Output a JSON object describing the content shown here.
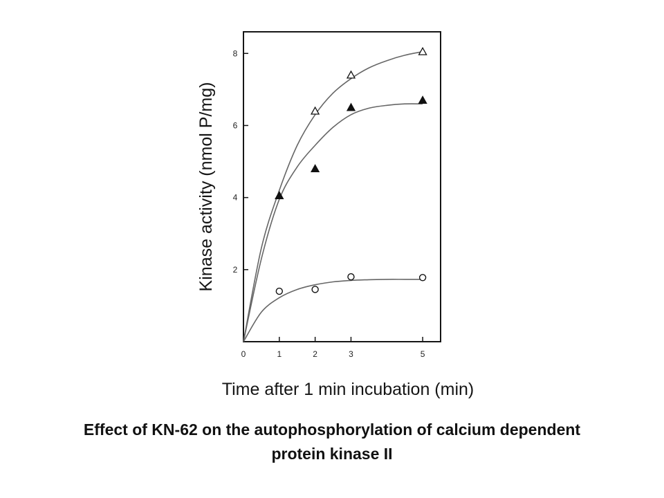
{
  "chart_data": {
    "type": "line",
    "xlabel": "Time after 1 min incubation (min)",
    "ylabel": "Kinase activity (nmol P/mg)",
    "xlim": [
      0,
      5.5
    ],
    "ylim": [
      0,
      8.6
    ],
    "xticks": [
      "0",
      "1",
      "2",
      "3",
      "5"
    ],
    "yticks": [
      "2",
      "4",
      "6",
      "8"
    ],
    "grid": false,
    "legend": "none",
    "series": [
      {
        "marker": "open-triangle",
        "points": [
          [
            1,
            4.05
          ],
          [
            2,
            6.4
          ],
          [
            3,
            7.4
          ],
          [
            5,
            8.05
          ]
        ],
        "curve": [
          [
            0,
            0
          ],
          [
            0.5,
            2.6
          ],
          [
            1,
            4.2
          ],
          [
            1.5,
            5.45
          ],
          [
            2,
            6.3
          ],
          [
            2.5,
            6.9
          ],
          [
            3,
            7.3
          ],
          [
            3.5,
            7.6
          ],
          [
            4,
            7.8
          ],
          [
            4.5,
            7.95
          ],
          [
            5,
            8.05
          ]
        ]
      },
      {
        "marker": "filled-triangle",
        "points": [
          [
            1,
            4.05
          ],
          [
            2,
            4.8
          ],
          [
            3,
            6.5
          ],
          [
            5,
            6.7
          ]
        ],
        "curve": [
          [
            0,
            0
          ],
          [
            0.5,
            2.3
          ],
          [
            1,
            3.95
          ],
          [
            1.5,
            4.85
          ],
          [
            2,
            5.45
          ],
          [
            2.5,
            5.95
          ],
          [
            3,
            6.3
          ],
          [
            3.5,
            6.48
          ],
          [
            4,
            6.56
          ],
          [
            4.5,
            6.6
          ],
          [
            5,
            6.6
          ]
        ]
      },
      {
        "marker": "open-circle",
        "points": [
          [
            1,
            1.4
          ],
          [
            2,
            1.45
          ],
          [
            3,
            1.8
          ],
          [
            5,
            1.78
          ]
        ],
        "curve": [
          [
            0,
            0
          ],
          [
            0.5,
            0.82
          ],
          [
            1,
            1.22
          ],
          [
            1.5,
            1.45
          ],
          [
            2,
            1.58
          ],
          [
            2.5,
            1.66
          ],
          [
            3,
            1.7
          ],
          [
            3.5,
            1.72
          ],
          [
            4,
            1.73
          ],
          [
            4.5,
            1.73
          ],
          [
            5,
            1.73
          ]
        ]
      }
    ],
    "colors": {
      "axis": "#151515",
      "curve": "#666666",
      "marker": "#111111"
    }
  },
  "caption": {
    "line1": "Effect of KN-62 on the autophosphorylation of calcium dependent",
    "line2": "protein kinase II"
  }
}
